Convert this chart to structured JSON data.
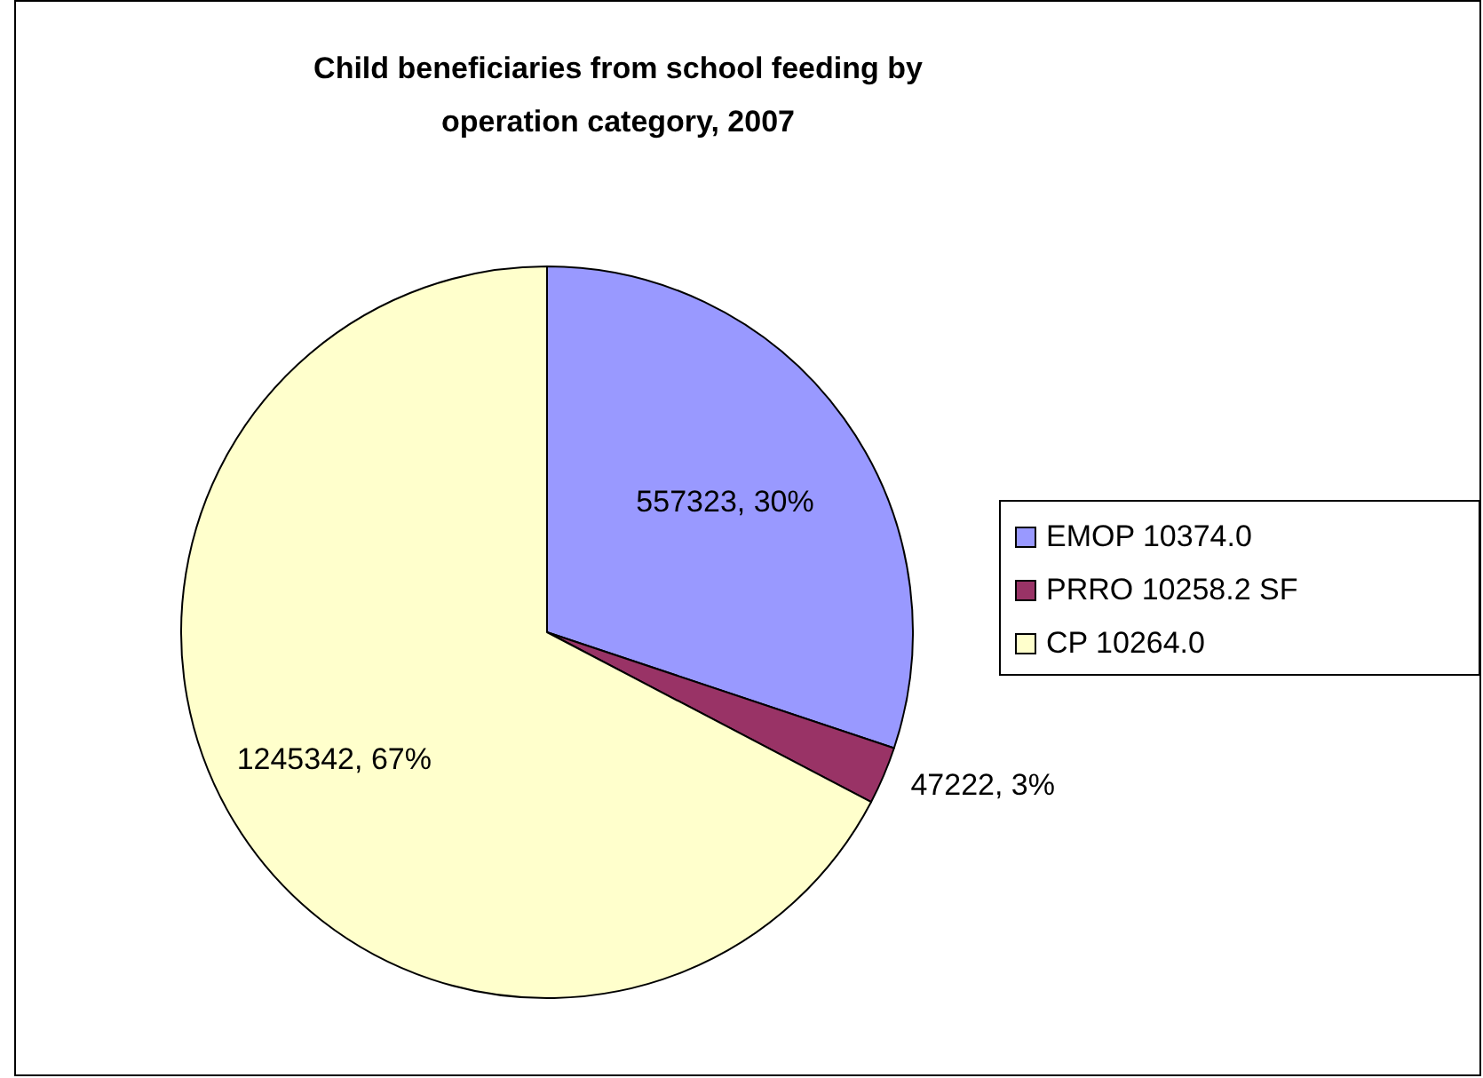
{
  "chart_data": {
    "type": "pie",
    "title": "Child beneficiaries from school feeding by operation category, 2007",
    "categories": [
      "EMOP 10374.0",
      "PRRO 10258.2 SF",
      "CP 10264.0"
    ],
    "values": [
      557323,
      47222,
      1245342
    ],
    "value_labels": [
      "557323, 30%",
      "47222, 3%",
      "1245342, 67%"
    ],
    "colors": [
      "#9999ff",
      "#993366",
      "#ffffcc"
    ],
    "legend": "right"
  }
}
